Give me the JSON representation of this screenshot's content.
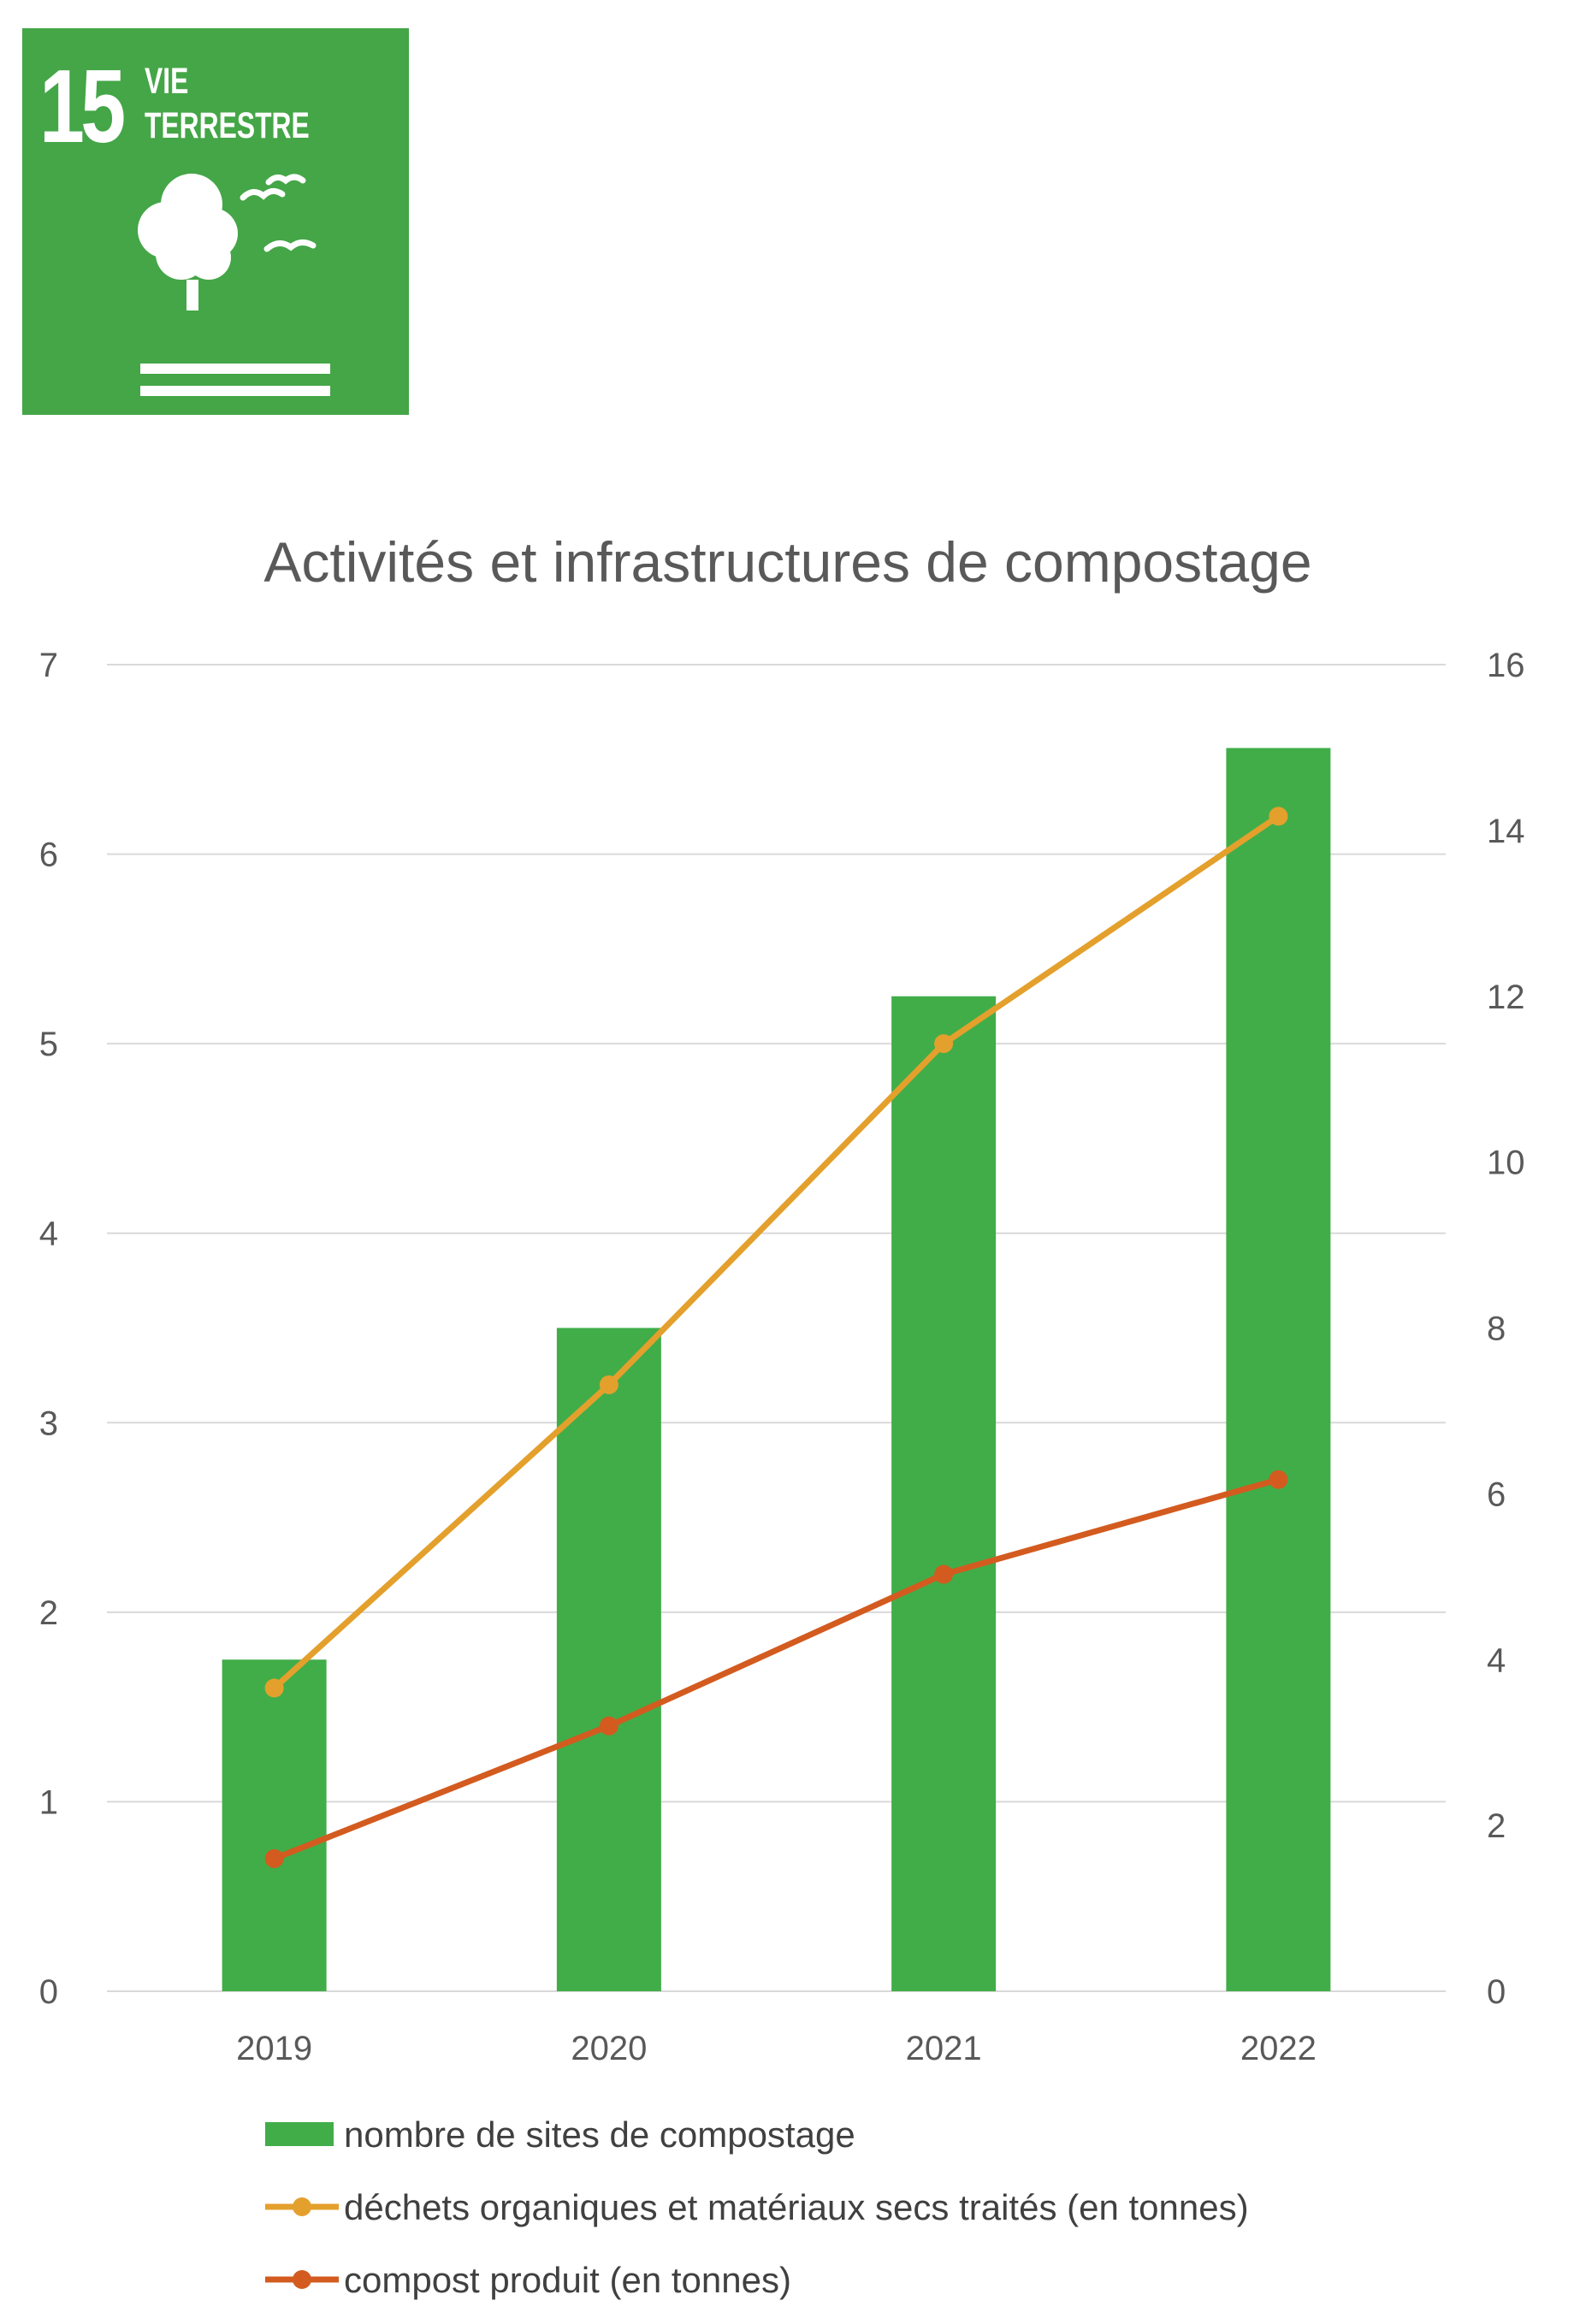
{
  "badge": {
    "number": "15",
    "label_line1": "VIE",
    "label_line2": "TERRESTRE",
    "icon": "tree-and-birds-icon",
    "color": "#44a647"
  },
  "chart_data": {
    "type": "bar",
    "title": "Activités et infrastructures de compostage",
    "categories": [
      "2019",
      "2020",
      "2021",
      "2022"
    ],
    "ylim": [
      0,
      7
    ],
    "y2lim": [
      0,
      16
    ],
    "y_ticks": [
      "0",
      "1",
      "2",
      "3",
      "4",
      "5",
      "6",
      "7"
    ],
    "y2_ticks": [
      "0",
      "2",
      "4",
      "6",
      "8",
      "10",
      "12",
      "14",
      "16"
    ],
    "grid": true,
    "legend_position": "bottom",
    "series": [
      {
        "name": "nombre de sites de compostage",
        "type": "bar",
        "axis": "left",
        "color": "#41ad49",
        "values": [
          1.75,
          3.5,
          5.25,
          6.56
        ]
      },
      {
        "name": "déchets organiques et matériaux secs traités (en tonnes)",
        "type": "line",
        "axis": "left",
        "color": "#e4a02c",
        "values": [
          1.6,
          3.2,
          5.0,
          6.2
        ]
      },
      {
        "name": "compost produit (en tonnes)",
        "type": "line",
        "axis": "left",
        "color": "#d35b1f",
        "values": [
          0.7,
          1.4,
          2.2,
          2.7
        ]
      }
    ]
  }
}
